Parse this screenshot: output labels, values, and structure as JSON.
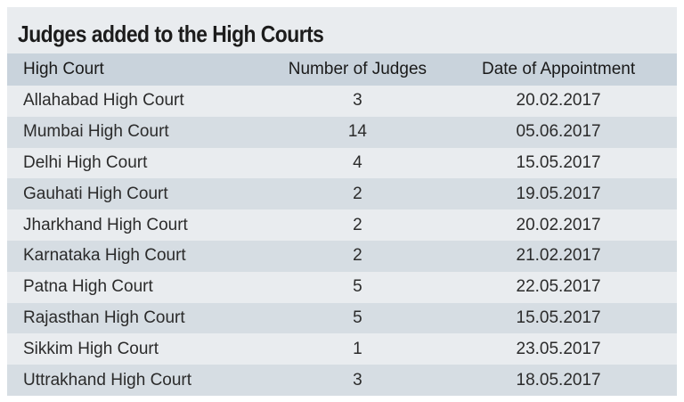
{
  "chart_data": {
    "type": "table",
    "title": "Judges added to the High Courts",
    "columns": [
      "High Court",
      "Number of Judges",
      "Date of Appointment"
    ],
    "rows": [
      {
        "court": "Allahabad High Court",
        "judges": "3",
        "date": "20.02.2017"
      },
      {
        "court": "Mumbai High Court",
        "judges": "14",
        "date": "05.06.2017"
      },
      {
        "court": "Delhi High Court",
        "judges": "4",
        "date": "15.05.2017"
      },
      {
        "court": "Gauhati High Court",
        "judges": "2",
        "date": "19.05.2017"
      },
      {
        "court": "Jharkhand High Court",
        "judges": "2",
        "date": "20.02.2017"
      },
      {
        "court": "Karnataka High Court",
        "judges": "2",
        "date": "21.02.2017"
      },
      {
        "court": "Patna High Court",
        "judges": "5",
        "date": "22.05.2017"
      },
      {
        "court": "Rajasthan High Court",
        "judges": "5",
        "date": "15.05.2017"
      },
      {
        "court": "Sikkim High Court",
        "judges": "1",
        "date": "23.05.2017"
      },
      {
        "court": "Uttrakhand High Court",
        "judges": "3",
        "date": "18.05.2017"
      }
    ]
  },
  "colors": {
    "panel": "#e9ecef",
    "header_row": "#c9d3dc",
    "stripe": "#d6dde3",
    "text": "#2b2b2b"
  }
}
